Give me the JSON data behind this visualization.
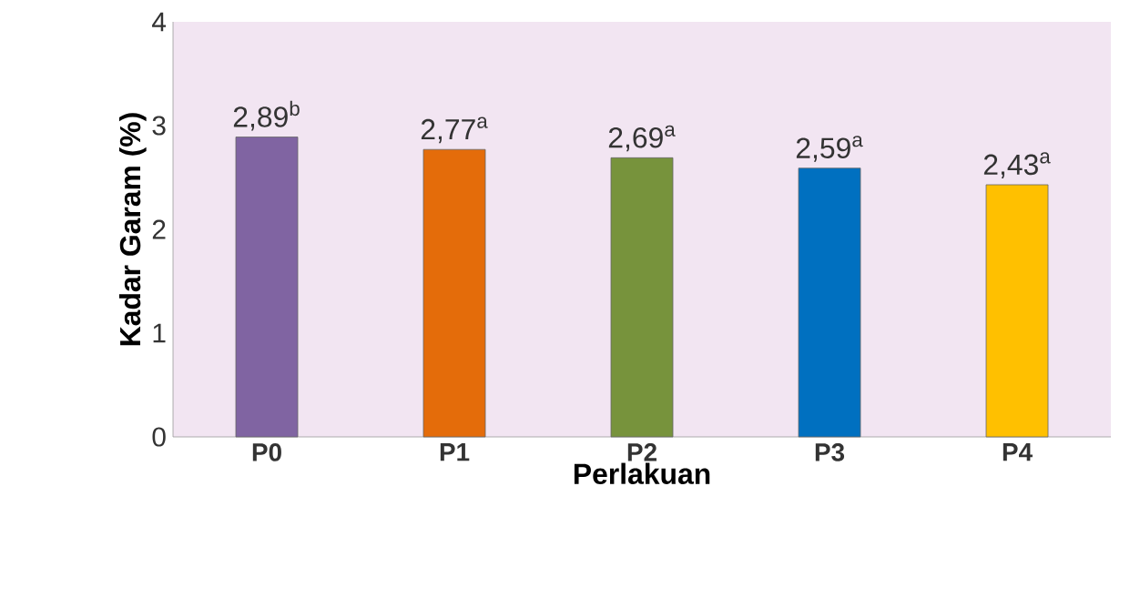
{
  "chart_data": {
    "type": "bar",
    "xlabel": "Perlakuan",
    "ylabel": "Kadar Garam (%)",
    "categories": [
      "P0",
      "P1",
      "P2",
      "P3",
      "P4"
    ],
    "values": [
      2.89,
      2.77,
      2.69,
      2.59,
      2.43
    ],
    "colors": [
      "#8064a2",
      "#e46c0a",
      "#77933c",
      "#0070c0",
      "#ffc000"
    ],
    "value_labels": [
      "2,89$^{b}$",
      "2,77$^{a}$",
      "2,69$^{a}$",
      "2,59$^{a}$",
      "2,43$^{a}$"
    ],
    "ylim": [
      0,
      4
    ],
    "yticks": [
      0,
      1,
      2,
      3,
      4
    ]
  }
}
